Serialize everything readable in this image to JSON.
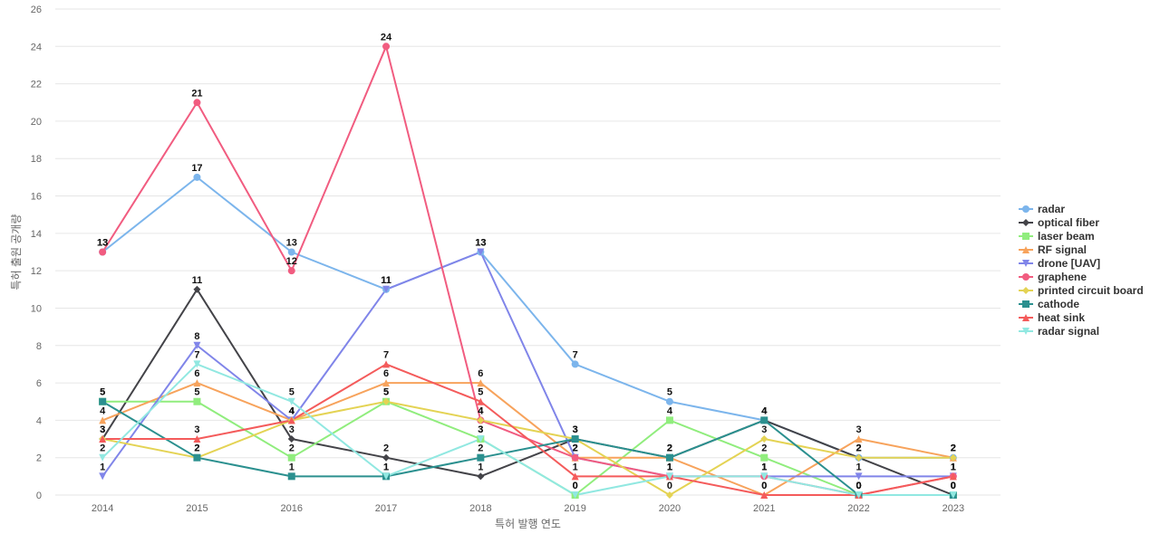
{
  "chart_data": {
    "type": "line",
    "title": "",
    "xlabel": "특허 발행 연도",
    "ylabel": "특허 출원 공개량",
    "ylim": [
      0,
      26
    ],
    "ytick_step": 2,
    "grid": true,
    "legend_position": "right",
    "x": [
      "2014",
      "2015",
      "2016",
      "2017",
      "2018",
      "2019",
      "2020",
      "2021",
      "2022",
      "2023"
    ],
    "series": [
      {
        "name": "radar",
        "color": "#7cb5ec",
        "marker": "circle",
        "values": [
          13,
          17,
          13,
          11,
          13,
          7,
          5,
          4,
          2,
          2
        ]
      },
      {
        "name": "optical fiber",
        "color": "#434348",
        "marker": "diamond",
        "values": [
          3,
          11,
          3,
          2,
          1,
          3,
          2,
          4,
          2,
          0
        ]
      },
      {
        "name": "laser beam",
        "color": "#90ed7d",
        "marker": "square",
        "values": [
          5,
          5,
          2,
          5,
          3,
          0,
          4,
          2,
          0,
          0
        ]
      },
      {
        "name": "RF signal",
        "color": "#f7a35c",
        "marker": "triangle",
        "values": [
          4,
          6,
          4,
          6,
          6,
          2,
          2,
          0,
          3,
          2
        ]
      },
      {
        "name": "drone [UAV]",
        "color": "#8085e9",
        "marker": "triangle-down",
        "values": [
          1,
          8,
          4,
          11,
          13,
          2,
          1,
          1,
          1,
          1
        ]
      },
      {
        "name": "graphene",
        "color": "#f15c80",
        "marker": "circle",
        "values": [
          13,
          21,
          12,
          24,
          4,
          2,
          1,
          1,
          0,
          1
        ]
      },
      {
        "name": "printed circuit board",
        "color": "#e4d354",
        "marker": "diamond",
        "values": [
          3,
          2,
          4,
          5,
          4,
          3,
          0,
          3,
          2,
          2
        ]
      },
      {
        "name": "cathode",
        "color": "#2b908f",
        "marker": "square",
        "values": [
          5,
          2,
          1,
          1,
          2,
          3,
          2,
          4,
          0,
          0
        ]
      },
      {
        "name": "heat sink",
        "color": "#f45b5b",
        "marker": "triangle",
        "values": [
          3,
          3,
          4,
          7,
          5,
          1,
          1,
          0,
          0,
          1
        ]
      },
      {
        "name": "radar signal",
        "color": "#91e8e1",
        "marker": "triangle-down",
        "values": [
          2,
          7,
          5,
          1,
          3,
          0,
          1,
          1,
          0,
          0
        ]
      }
    ]
  }
}
